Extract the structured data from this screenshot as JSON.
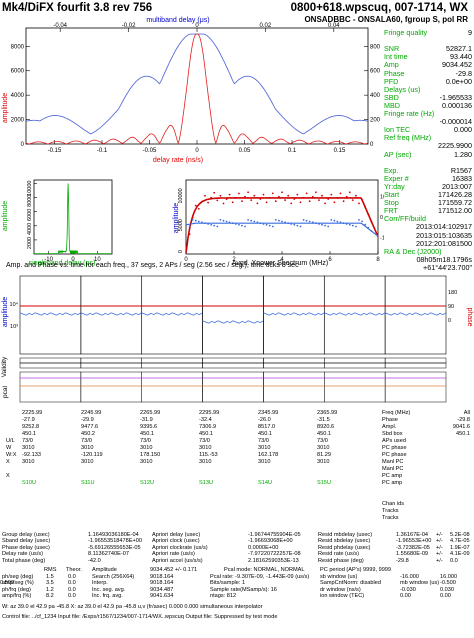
{
  "header": {
    "title_left": "Mk4/DiFX fourfit 3.8 rev 756",
    "title_right": "0800+618.wpscuq, 007-1714, WX",
    "subtitle_right": "ONSADBBC - ONSALA60, fgroup S, pol RR"
  },
  "top_plot": {
    "title": "multiband delay (μs)",
    "xlabel": "delay rate (ns/s)",
    "ylabel_left": "amplitude",
    "top_ticks": [
      "-0.04",
      "-0.02",
      "0",
      "0.02",
      "0.04"
    ],
    "bottom_ticks": [
      "-0.15",
      "-0.1",
      "-0.05",
      "0",
      "0.05",
      "0.1",
      "0.15"
    ],
    "left_ticks": [
      "0",
      "2000",
      "4000",
      "6000",
      "8000"
    ],
    "right_ticks": [
      "0",
      "2000",
      "4000",
      "6000",
      "8000"
    ]
  },
  "mid_left_plot": {
    "xlabel": "singleband delay (μs)",
    "ylabel": "amplitude",
    "x_ticks": [
      "-10",
      "0",
      "10"
    ],
    "y_ticks": [
      "2000",
      "4000",
      "6000",
      "8000",
      "10000"
    ]
  },
  "mid_right_plot": {
    "xlabel": "Avgd. Xpower Spectrum (MHz)",
    "ylabel": "amplitude",
    "x_ticks": [
      "0",
      "2",
      "4",
      "6",
      "8"
    ],
    "y_ticks_right": [
      "-100",
      "0",
      "100"
    ],
    "y_ticks_left": [
      "0",
      "5000",
      "10000"
    ]
  },
  "right_panel": [
    {
      "k": "Fringe quality",
      "v": "9"
    },
    {
      "k": "",
      "v": ""
    },
    {
      "k": "SNR",
      "v": "52827.1"
    },
    {
      "k": "Int time",
      "v": "93.440"
    },
    {
      "k": "Amp",
      "v": "9034.452"
    },
    {
      "k": "Phase",
      "v": "-29.8"
    },
    {
      "k": "PFD",
      "v": "0.0e+00"
    },
    {
      "k": "Delays (us)",
      "v": ""
    },
    {
      "k": "SBD",
      "v": "-1.965533"
    },
    {
      "k": "MBD",
      "v": "0.000136"
    },
    {
      "k": "Fringe rate (Hz)",
      "v": ""
    },
    {
      "k": "",
      "v": "-0.000014"
    },
    {
      "k": "Ion TEC",
      "v": "0.000"
    },
    {
      "k": "Ref freq (MHz)",
      "v": ""
    },
    {
      "k": "",
      "v": "2225.9900"
    },
    {
      "k": "AP (sec)",
      "v": "1.280"
    },
    {
      "k": "",
      "v": ""
    },
    {
      "k": "Exp.",
      "v": "R1567"
    },
    {
      "k": "Exper #",
      "v": "16383"
    },
    {
      "k": "Yr:day",
      "v": "2013:007"
    },
    {
      "k": "Start",
      "v": "171426.28"
    },
    {
      "k": "Stop",
      "v": "171559.72"
    },
    {
      "k": "FRT",
      "v": "171512.00"
    },
    {
      "k": "Corr/FF/build",
      "v": ""
    },
    {
      "k": "",
      "v": "2013:014:102917"
    },
    {
      "k": "",
      "v": "2013:015:103635"
    },
    {
      "k": "",
      "v": "2012:201:081500"
    },
    {
      "k": "RA & Dec (J2000)",
      "v": ""
    },
    {
      "k": "",
      "v": "08h05m18.1796s"
    },
    {
      "k": "",
      "v": "+61°44'23.700\""
    }
  ],
  "amp_phase": {
    "title": "Amp. and Phase vs. time for each freq., 37 segs, 2 APs / seg (2.56 sec / seg.), time ticks 5 sec",
    "left_label": "amplitude",
    "right_label": "phase",
    "left_ticks": [
      "10⁴",
      "10³"
    ],
    "right_ticks": [
      "0",
      "90",
      "180"
    ],
    "validity_label": "Validity",
    "pcal_label": "pcal",
    "channels": 6
  },
  "channel_table": {
    "freq": [
      "2225.99",
      "2245.99",
      "2265.99",
      "2295.99",
      "2345.99",
      "2365.99"
    ],
    "phase": [
      "-27.9",
      "-29.9",
      "-31.9",
      "-32.4",
      "-26.0",
      "-31.5"
    ],
    "amp": [
      "9252.8",
      "9477.6",
      "9395.6",
      "7306.9",
      "8517.0",
      "8920.6"
    ],
    "sbd": [
      "450.1",
      "450.2",
      "450.1",
      "450.1",
      "450.1",
      "450.1"
    ],
    "ul": [
      "73/0",
      "73/0",
      "73/0",
      "73/0",
      "73/0",
      "73/0"
    ],
    "w": [
      "3010",
      "3010",
      "3010",
      "3010",
      "3010",
      "3010"
    ],
    "wx": [
      "-92.133",
      "-120.119",
      "178.150",
      "115.-53",
      "162.178",
      "81.29"
    ],
    "x": [
      "3010",
      "3010",
      "3010",
      "3010",
      "3010",
      "3010"
    ],
    "chan_ids": [
      "S10U",
      "S11U",
      "S12U",
      "S13U",
      "S14U",
      "S15U"
    ],
    "summary_right": [
      "Freq (MHz)",
      "Phase",
      "Ampl.",
      "Sbd box",
      "APs used",
      "PC phase",
      "PC phase",
      "Manl PC",
      "Manl PC",
      "PC amp",
      "PC amp",
      "",
      "",
      "Chan ids",
      "Tracks",
      "Tracks"
    ],
    "summary_all": [
      "All",
      "-29.8",
      "9041.6",
      "450.1"
    ],
    "row_labels": [
      "U/L",
      "W",
      "W:X",
      "X",
      "",
      "X"
    ]
  },
  "bottom_stats": {
    "rows": [
      [
        "Group delay (usec)",
        "1.16493036180E-04",
        "Apriori delay (usec)",
        "-1.96744755904E-05",
        "Resid mbdelay (usec)",
        "1.36167E-04",
        "+/-",
        "5.2E-08"
      ],
      [
        "Sband delay (usec)",
        "-1.96553518478E+00",
        "Apriori clock (usec)",
        "-1.96693068E+00",
        "Resid sbdelay (usec)",
        "-1.96553E+00",
        "+/-",
        "4.7E-05"
      ],
      [
        "Phase delay (usec)",
        "-5.69126555653E-05",
        "Apriori clockrate (us/s)",
        "0.0000E+00",
        "Resid phdelay (usec)",
        "-3.72382E-05",
        "+/-",
        "1.9E-07"
      ],
      [
        "Delay rate (us/s)",
        "8.11362740E-07",
        "Apriori rate (us/s)",
        "-7.97220722257E-08",
        "Resid rate (us/s)",
        "1.55680E-09",
        "+/-",
        "4.1E-09"
      ],
      [
        "Total phase (deg)",
        "-42.0",
        "Apriori accel (us/s/s)",
        "2.18162590353E-13",
        "Resid phase (deg)",
        "-29.8",
        "+/-",
        "0.0"
      ]
    ],
    "rms_header": [
      "RMS",
      "Theor.",
      "Amplitude",
      "9034.452 +/- 0.171",
      "Pcal mode: NORMAL, NORMAL",
      "PC period (AP's) 9999, 9999"
    ],
    "rms_rows": [
      [
        "ph/seg (deg)",
        "1.5",
        "0.0",
        "Search (256X64)",
        "9018.164",
        "Pcal rate: -9.307E-09, -1.443E-09 (us/s)",
        "sb window (us)",
        "-16.000",
        "16.000"
      ],
      [
        "amp/seg (%)",
        "3.5",
        "0.0",
        "Interp.",
        "9018.164",
        "Bits/sample: 1",
        "SampCntNorm: disabled",
        "mb window (us)",
        "-0.500",
        "0.500"
      ],
      [
        "ph/frq (deg)",
        "1.2",
        "0.0",
        "Inc. seg. avg.",
        "9034.487",
        "Sample rate(MSamp/s): 16",
        "dr window (ns/s)",
        "-0.030",
        "0.030"
      ],
      [
        "amp/frq (%)",
        "8.2",
        "0.0",
        "Inc. frq. avg.",
        "9041.634",
        "ntags: 812",
        "ion window (TEC)",
        "0.00",
        "0.00"
      ]
    ],
    "lower_line": "W: az 39.0  el 42.9  pa -45.8      X: az 39.0  el 42.9  pa -45.8      u,v (fr/asec) 0.000  0.000      simultaneous interpolator",
    "control_line": "Control file: ../cf_1234    Input file: /Exps/r1567/1234/007-1714/WX..wpscuq    Output file: Suppressed by test mode"
  },
  "chart_data": [
    {
      "type": "line",
      "title": "multiband delay (μs)",
      "xlabel": "delay rate (ns/s)",
      "ylabel": "amplitude",
      "x_range": [
        -0.18,
        0.18
      ],
      "top_axis_range": [
        -0.05,
        0.05
      ],
      "ylim": [
        0,
        9500
      ],
      "series": [
        {
          "color": "#5a6ed8",
          "x": [
            -0.18,
            -0.16,
            -0.14,
            -0.12,
            -0.1,
            -0.08,
            -0.06,
            -0.04,
            -0.02,
            0,
            0.02,
            0.04,
            0.06,
            0.08,
            0.1,
            0.12,
            0.14,
            0.16,
            0.18
          ],
          "values": [
            3200,
            1200,
            5800,
            6600,
            3000,
            2100,
            6000,
            5600,
            900,
            9000,
            900,
            5600,
            6000,
            2100,
            3000,
            6600,
            5800,
            1200,
            3200
          ]
        },
        {
          "color": "#e02020",
          "x": [
            -0.18,
            -0.1,
            -0.05,
            -0.03,
            -0.02,
            -0.01,
            0,
            0.01,
            0.02,
            0.03,
            0.05,
            0.1,
            0.18
          ],
          "values": [
            200,
            250,
            400,
            900,
            600,
            1800,
            9000,
            1800,
            600,
            900,
            400,
            250,
            200
          ]
        }
      ]
    },
    {
      "type": "line",
      "xlabel": "singleband delay (μs)",
      "ylabel": "amplitude",
      "x_range": [
        -16,
        16
      ],
      "ylim": [
        0,
        10500
      ],
      "series": [
        {
          "color": "#00aa00",
          "x": [
            -16,
            -4,
            -2.5,
            -2,
            -1.5,
            0,
            2,
            16
          ],
          "values": [
            100,
            200,
            800,
            9800,
            800,
            200,
            100,
            100
          ]
        }
      ]
    },
    {
      "type": "scatter",
      "xlabel": "Avgd. Xpower Spectrum (MHz)",
      "x_range": [
        0,
        8
      ],
      "series": [
        {
          "name": "amplitude",
          "color": "#d00000",
          "x": [
            0.1,
            0.3,
            0.6,
            1,
            2,
            3,
            4,
            5,
            6,
            7,
            7.5,
            7.8
          ],
          "values": [
            5500,
            7800,
            8600,
            9000,
            9100,
            9100,
            9000,
            9000,
            9100,
            8900,
            7500,
            4000
          ]
        },
        {
          "name": "phase",
          "color": "#3a6ee0",
          "x": [
            0.1,
            0.3,
            0.6,
            1,
            2,
            3,
            4,
            5,
            6,
            7,
            7.5,
            7.8
          ],
          "values": [
            -40,
            -30,
            -25,
            -28,
            -30,
            -30,
            -32,
            -30,
            -29,
            -30,
            -45,
            -80
          ]
        }
      ]
    }
  ]
}
